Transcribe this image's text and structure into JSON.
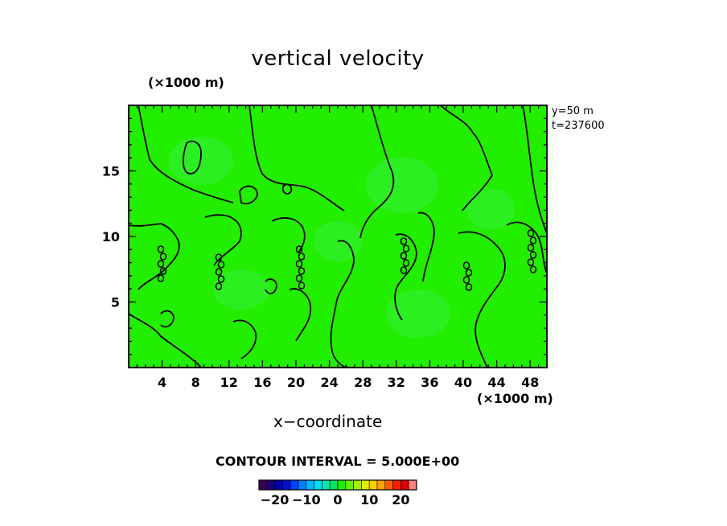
{
  "chart_data": {
    "type": "heatmap",
    "title": "vertical velocity",
    "xlabel": "x−coordinate",
    "x_unit": "(×1000 m)",
    "y_unit": "(×1000 m)",
    "xlim": [
      0,
      50
    ],
    "ylim": [
      0,
      20
    ],
    "x_ticks": [
      4,
      8,
      12,
      16,
      20,
      24,
      28,
      32,
      36,
      40,
      44,
      48
    ],
    "x_tick_labels": [
      "4",
      "8",
      "12",
      "16",
      "20",
      "24",
      "28",
      "32",
      "36",
      "40",
      "44",
      "48"
    ],
    "y_ticks": [
      5,
      10,
      15
    ],
    "y_tick_labels": [
      "5",
      "10",
      "15"
    ],
    "annotations": [
      "y=50  m",
      "t=237600"
    ],
    "contour_interval_text": "CONTOUR INTERVAL = 5.000E+00",
    "contour_interval": 5.0,
    "field_value_range": [
      -5,
      5
    ],
    "background_color": "#22ee00",
    "colorbar": {
      "min": -25,
      "max": 25,
      "tick_values": [
        -20,
        -10,
        0,
        10,
        20
      ],
      "tick_labels": [
        "−20",
        "−10",
        "0",
        "10",
        "20"
      ],
      "colors": [
        "#3a0050",
        "#1a007a",
        "#0000aa",
        "#0010d0",
        "#0040ff",
        "#0080ff",
        "#00b8ff",
        "#00e0f0",
        "#00e8b0",
        "#00e860",
        "#20ee00",
        "#60f000",
        "#a0f000",
        "#e0f000",
        "#ffd000",
        "#ffa000",
        "#ff6000",
        "#ff2000",
        "#e00000",
        "#ff8080"
      ]
    }
  }
}
